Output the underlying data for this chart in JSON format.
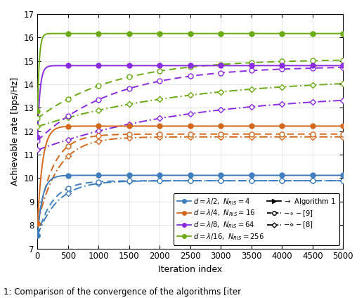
{
  "xlabel": "Iteration index",
  "ylabel": "Achievable rate [bps/Hz]",
  "xlim": [
    0,
    5000
  ],
  "ylim": [
    7,
    17
  ],
  "yticks": [
    7,
    8,
    9,
    10,
    11,
    12,
    13,
    14,
    15,
    16,
    17
  ],
  "xticks": [
    0,
    500,
    1000,
    1500,
    2000,
    2500,
    3000,
    3500,
    4000,
    4500,
    5000
  ],
  "colors": {
    "blue": "#3f7ebe",
    "orange": "#d2691e",
    "purple": "#8b2be2",
    "green": "#6aaa12"
  },
  "alg1_final": {
    "blue": 10.12,
    "orange": 12.22,
    "purple": 14.8,
    "green": 16.17
  },
  "alg1_start": {
    "blue": 7.55,
    "orange": 8.05,
    "purple": 11.75,
    "green": 12.85
  },
  "alg1_rate": {
    "blue": 0.012,
    "orange": 0.012,
    "purple": 0.025,
    "green": 0.035
  },
  "ref9_final": {
    "blue": 9.89,
    "orange": 11.88,
    "purple": 14.78,
    "green": 15.08
  },
  "ref9_start": {
    "blue": 7.55,
    "orange": 8.05,
    "purple": 11.6,
    "green": 12.55
  },
  "ref9_rate": {
    "blue": 0.004,
    "orange": 0.004,
    "purple": 0.0008,
    "green": 0.0008
  },
  "ref8_final": {
    "blue": 9.89,
    "orange": 11.76,
    "purple": 13.65,
    "green": 14.32
  },
  "ref8_start": {
    "blue": 7.55,
    "orange": 8.05,
    "purple": 11.2,
    "green": 12.2
  },
  "ref8_rate": {
    "blue": 0.003,
    "orange": 0.003,
    "purple": 0.0004,
    "green": 0.0004
  },
  "mark_x": [
    0,
    500,
    1000,
    1500,
    2000,
    2500,
    3000,
    3500,
    4000,
    4500,
    5000
  ],
  "caption": "1: Comparison of the convergence of the algorithms [iter"
}
